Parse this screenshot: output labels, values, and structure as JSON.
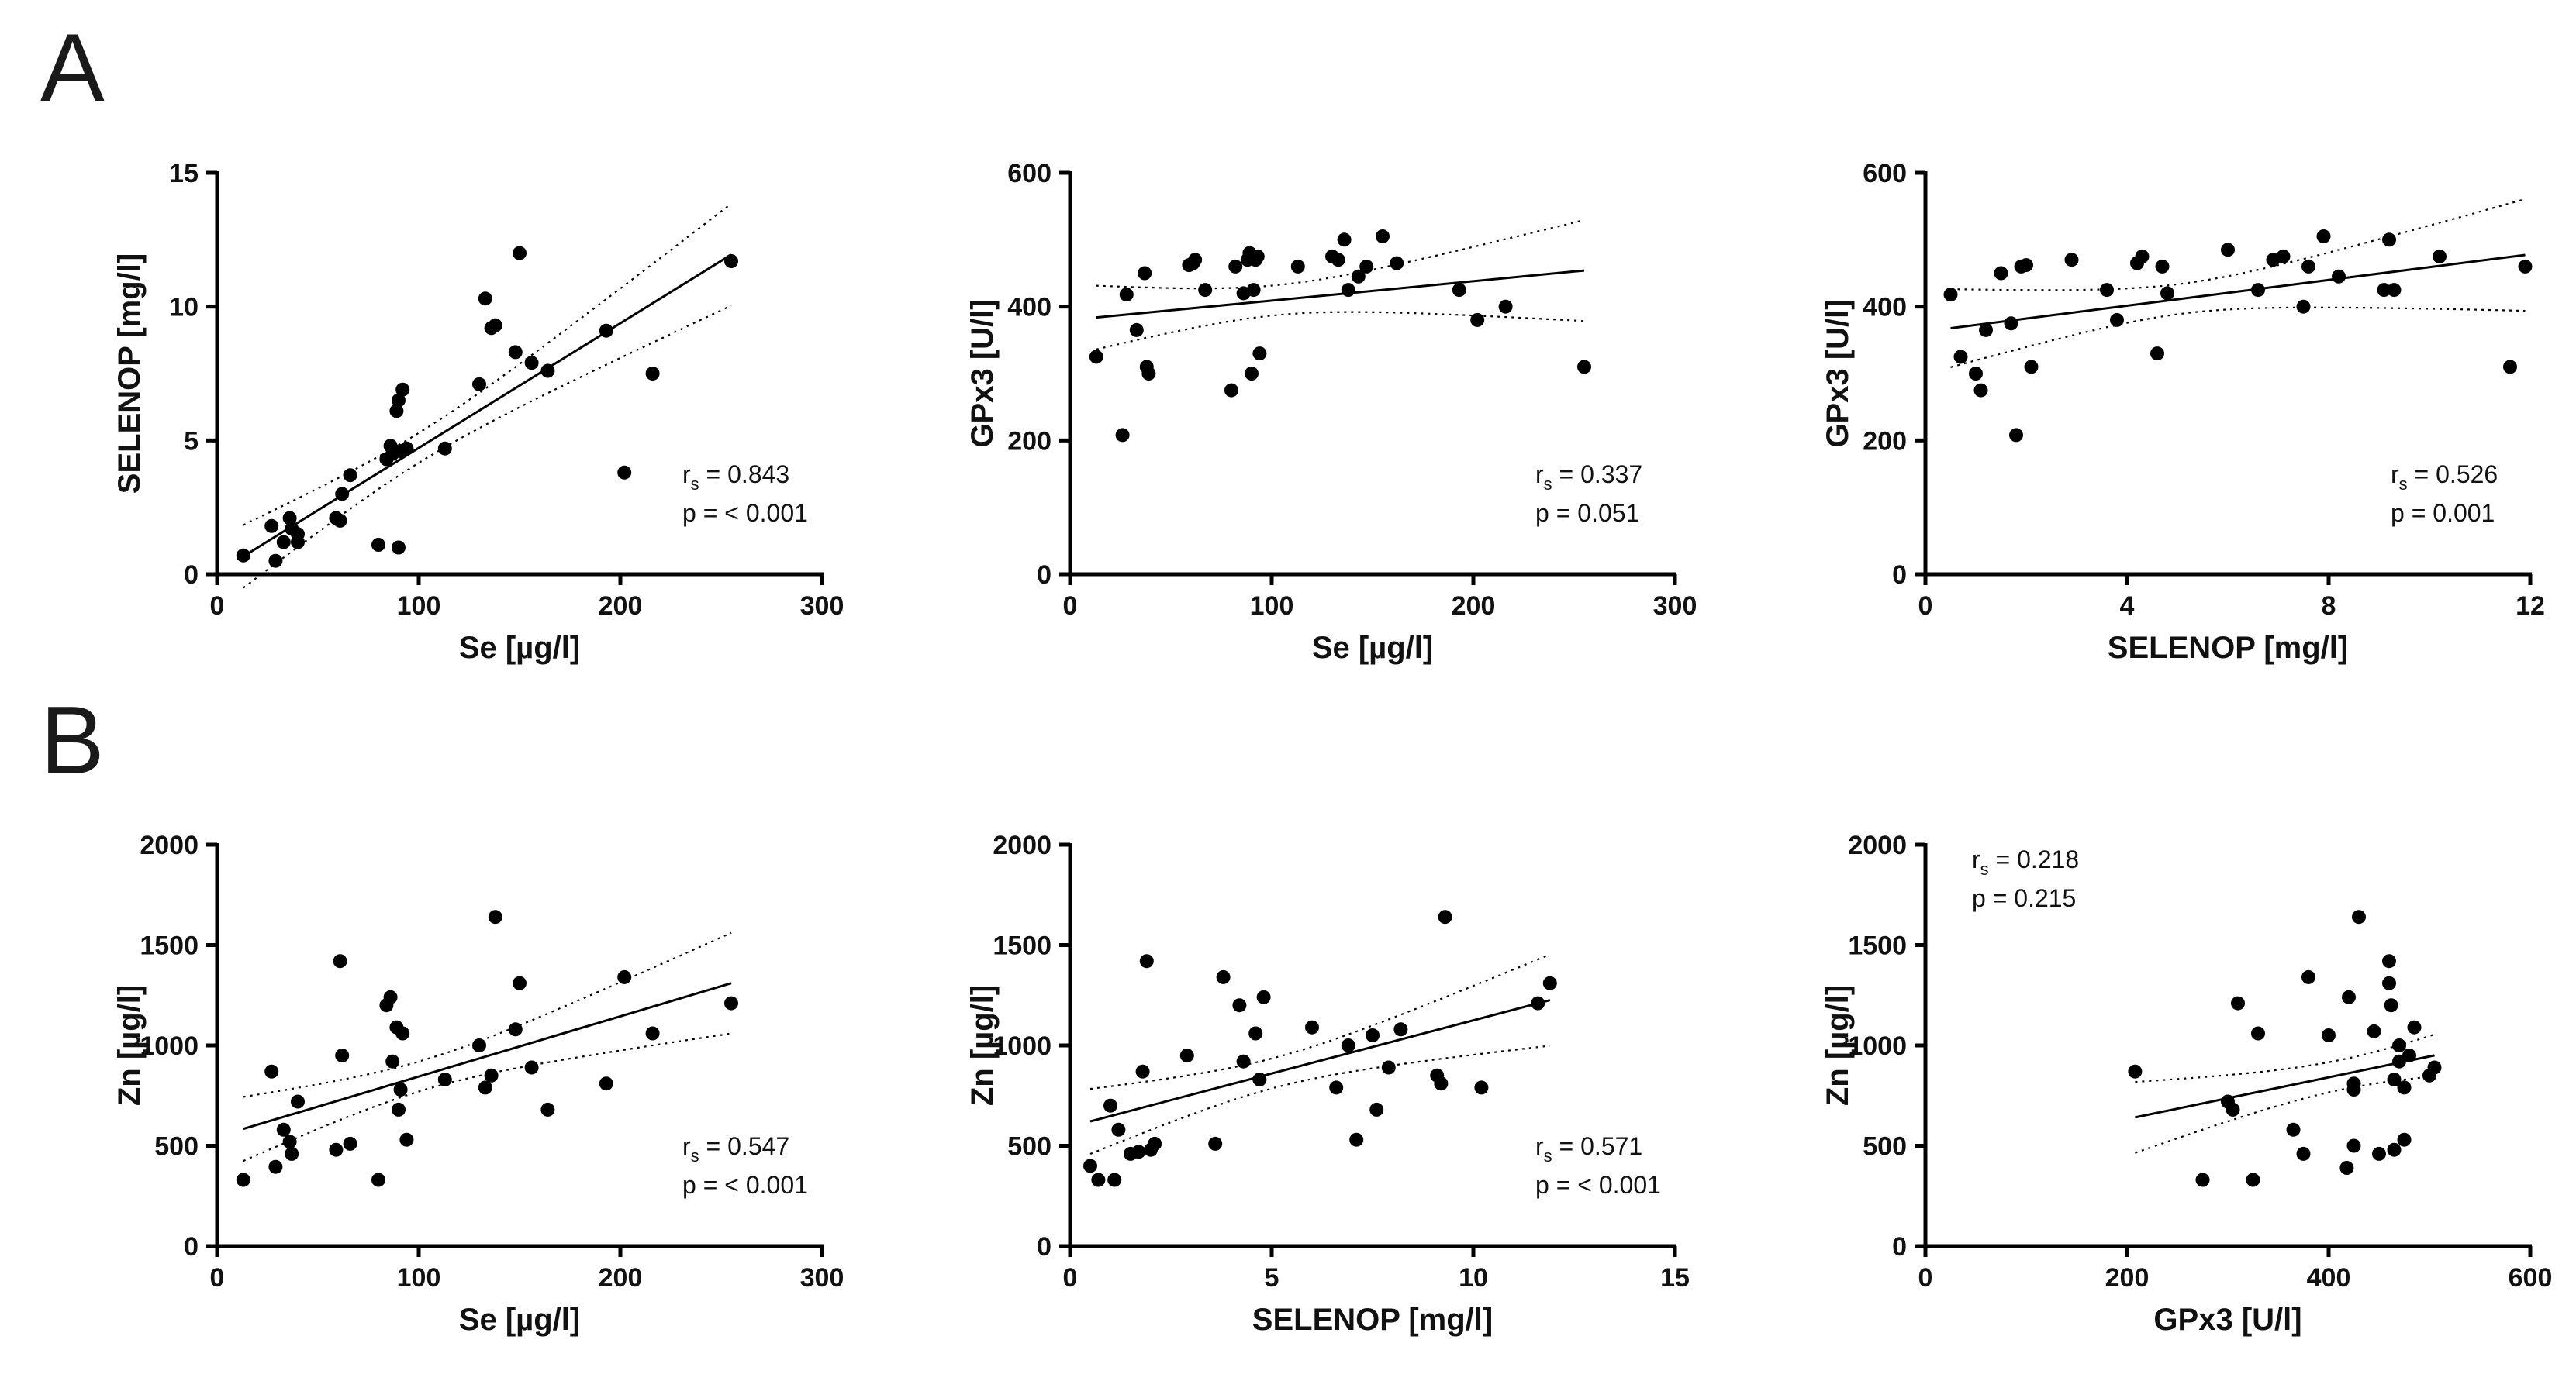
{
  "panels": {
    "A": "A",
    "B": "B"
  },
  "chart_data": [
    {
      "id": "A1",
      "type": "scatter",
      "row": "A",
      "col": 0,
      "xlabel": "Se [µg/l]",
      "ylabel": "SELENOP [mg/l]",
      "xlim": [
        0,
        300
      ],
      "ylim": [
        0,
        15
      ],
      "xticks": [
        0,
        100,
        200,
        300
      ],
      "yticks": [
        0,
        5,
        10,
        15
      ],
      "stat_pos": "bottom-right",
      "stats": {
        "rs_label": "r",
        "rs_sub": "s",
        "rs": " = 0.843",
        "p": "p = < 0.001"
      },
      "fit": {
        "slope": 0.0466,
        "intercept": 0.06
      },
      "ci": {
        "h": 0.65
      },
      "x": [
        13,
        27,
        29,
        33,
        36,
        37,
        40,
        40,
        59,
        61,
        62,
        66,
        80,
        84,
        86,
        87,
        89,
        90,
        90,
        91,
        92,
        94,
        113,
        130,
        133,
        136,
        138,
        148,
        150,
        156,
        164,
        193,
        202,
        216,
        255
      ],
      "y": [
        0.7,
        1.8,
        0.5,
        1.2,
        2.1,
        1.7,
        1.5,
        1.2,
        2.1,
        2.0,
        3.0,
        3.7,
        1.1,
        4.3,
        4.8,
        4.5,
        6.1,
        6.5,
        1.0,
        4.6,
        6.9,
        4.7,
        4.7,
        7.1,
        10.3,
        9.2,
        9.3,
        8.3,
        12.0,
        7.9,
        7.6,
        9.1,
        3.8,
        7.5,
        11.7
      ]
    },
    {
      "id": "A2",
      "type": "scatter",
      "row": "A",
      "col": 1,
      "xlabel": "Se [µg/l]",
      "ylabel": "GPx3 [U/l]",
      "xlim": [
        0,
        300
      ],
      "ylim": [
        0,
        600
      ],
      "xticks": [
        0,
        100,
        200,
        300
      ],
      "yticks": [
        0,
        200,
        400,
        600
      ],
      "stat_pos": "bottom-right",
      "stats": {
        "rs_label": "r",
        "rs_sub": "s",
        "rs": " = 0.337",
        "p": "p = 0.051"
      },
      "fit": {
        "slope": 0.29,
        "intercept": 380
      },
      "ci": {
        "h": 0.0007
      },
      "x": [
        13,
        26,
        28,
        33,
        37,
        38,
        39,
        59,
        61,
        62,
        67,
        80,
        82,
        86,
        88,
        89,
        90,
        91,
        92,
        93,
        94,
        113,
        130,
        133,
        136,
        138,
        143,
        147,
        155,
        162,
        193,
        202,
        216,
        255
      ],
      "y": [
        325,
        208,
        418,
        365,
        450,
        310,
        300,
        462,
        465,
        470,
        425,
        275,
        460,
        420,
        470,
        480,
        300,
        425,
        470,
        475,
        330,
        460,
        475,
        470,
        500,
        425,
        445,
        460,
        505,
        465,
        425,
        380,
        400,
        310
      ]
    },
    {
      "id": "A3",
      "type": "scatter",
      "row": "A",
      "col": 2,
      "xlabel": "SELENOP [mg/l]",
      "ylabel": "GPx3 [U/l]",
      "xlim": [
        0,
        12
      ],
      "ylim": [
        0,
        600
      ],
      "xticks": [
        0,
        4,
        8,
        12
      ],
      "yticks": [
        0,
        200,
        400,
        600
      ],
      "stat_pos": "bottom-right",
      "stats": {
        "rs_label": "r",
        "rs_sub": "s",
        "rs": " = 0.526",
        "p": "p = 0.001"
      },
      "fit": {
        "slope": 9.6,
        "intercept": 363
      },
      "ci": {
        "h": 1.1
      },
      "x": [
        0.5,
        0.7,
        1.0,
        1.1,
        1.2,
        1.5,
        1.7,
        1.8,
        1.9,
        2.0,
        2.1,
        2.9,
        3.6,
        3.8,
        4.2,
        4.3,
        4.6,
        4.7,
        4.8,
        6.0,
        6.6,
        6.9,
        7.1,
        7.5,
        7.6,
        7.9,
        8.2,
        9.1,
        9.2,
        9.3,
        10.2,
        11.6,
        11.9
      ],
      "y": [
        418,
        325,
        300,
        275,
        365,
        450,
        375,
        208,
        460,
        462,
        310,
        470,
        425,
        380,
        465,
        475,
        330,
        460,
        420,
        485,
        425,
        470,
        475,
        400,
        460,
        505,
        445,
        425,
        500,
        425,
        475,
        310,
        460
      ]
    },
    {
      "id": "B1",
      "type": "scatter",
      "row": "B",
      "col": 0,
      "xlabel": "Se [µg/l]",
      "ylabel": "Zn [µg/l]",
      "xlim": [
        0,
        300
      ],
      "ylim": [
        0,
        2000
      ],
      "xticks": [
        0,
        100,
        200,
        300
      ],
      "yticks": [
        0,
        500,
        1000,
        1500,
        2000
      ],
      "stat_pos": "bottom-right",
      "stats": {
        "rs_label": "r",
        "rs_sub": "s",
        "rs": " = 0.547",
        "p": "p = < 0.001"
      },
      "fit": {
        "slope": 3.0,
        "intercept": 545
      },
      "ci": {
        "h": 0.0045
      },
      "x": [
        13,
        27,
        29,
        33,
        36,
        37,
        40,
        59,
        61,
        62,
        66,
        80,
        84,
        86,
        87,
        89,
        90,
        91,
        92,
        94,
        113,
        130,
        133,
        136,
        138,
        148,
        150,
        156,
        164,
        193,
        202,
        216,
        255
      ],
      "y": [
        330,
        870,
        395,
        580,
        520,
        460,
        720,
        480,
        1420,
        950,
        510,
        330,
        1200,
        1240,
        920,
        1090,
        680,
        780,
        1060,
        530,
        830,
        1000,
        790,
        850,
        1640,
        1080,
        1310,
        890,
        680,
        810,
        1340,
        1060,
        1210
      ]
    },
    {
      "id": "B2",
      "type": "scatter",
      "row": "B",
      "col": 1,
      "xlabel": "SELENOP [mg/l]",
      "ylabel": "Zn [µg/l]",
      "xlim": [
        0,
        15
      ],
      "ylim": [
        0,
        2000
      ],
      "xticks": [
        0,
        5,
        10,
        15
      ],
      "yticks": [
        0,
        500,
        1000,
        1500,
        2000
      ],
      "stat_pos": "bottom-right",
      "stats": {
        "rs_label": "r",
        "rs_sub": "s",
        "rs": " = 0.571",
        "p": "p = < 0.001"
      },
      "fit": {
        "slope": 53,
        "intercept": 595
      },
      "ci": {
        "h": 1.5
      },
      "x": [
        0.5,
        0.7,
        1.0,
        1.1,
        1.2,
        1.5,
        1.7,
        1.8,
        1.9,
        2.0,
        2.1,
        2.9,
        3.6,
        3.8,
        4.2,
        4.3,
        4.6,
        4.7,
        4.8,
        6.0,
        6.6,
        6.9,
        7.1,
        7.5,
        7.6,
        7.9,
        8.2,
        9.1,
        9.2,
        9.3,
        10.2,
        11.6,
        11.9
      ],
      "y": [
        400,
        330,
        700,
        330,
        580,
        460,
        470,
        870,
        1420,
        480,
        510,
        950,
        510,
        1340,
        1200,
        920,
        1060,
        830,
        1240,
        1090,
        790,
        1000,
        530,
        1050,
        680,
        890,
        1080,
        850,
        810,
        1640,
        790,
        1210,
        1310
      ]
    },
    {
      "id": "B3",
      "type": "scatter",
      "row": "B",
      "col": 2,
      "xlabel": "GPx3 [U/l]",
      "ylabel": "Zn [µg/l]",
      "xlim": [
        0,
        600
      ],
      "ylim": [
        0,
        2000
      ],
      "xticks": [
        0,
        200,
        400,
        600
      ],
      "yticks": [
        0,
        500,
        1000,
        1500,
        2000
      ],
      "stat_pos": "top-left",
      "stats": {
        "rs_label": "r",
        "rs_sub": "s",
        "rs": " = 0.218",
        "p": "p = 0.215"
      },
      "fit": {
        "slope": 1.04,
        "intercept": 425
      },
      "ci": {
        "h": 0.00025
      },
      "x": [
        208,
        275,
        300,
        305,
        310,
        325,
        330,
        365,
        375,
        380,
        400,
        418,
        420,
        425,
        425,
        425,
        430,
        445,
        450,
        460,
        460,
        462,
        465,
        465,
        470,
        470,
        475,
        475,
        480,
        485,
        500,
        505
      ],
      "y": [
        870,
        330,
        720,
        680,
        1210,
        330,
        1060,
        580,
        460,
        1340,
        1050,
        390,
        1240,
        780,
        810,
        500,
        1640,
        1070,
        460,
        1420,
        1310,
        1200,
        480,
        830,
        920,
        1000,
        530,
        790,
        950,
        1090,
        850,
        890
      ]
    }
  ]
}
